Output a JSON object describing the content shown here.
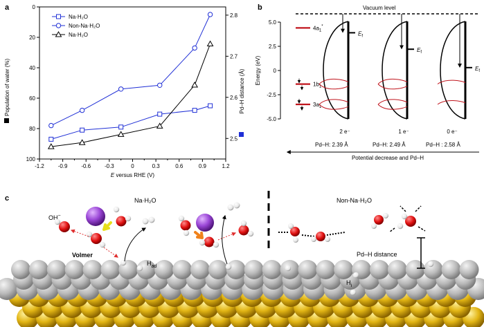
{
  "panel_labels": {
    "a": "a",
    "b": "b",
    "c": "c"
  },
  "colors": {
    "blue": "#1f2fd6",
    "black": "#000000",
    "red": "#c0141c",
    "purple": "#8b3fc0",
    "yellow": "#e4b51b",
    "gray": "#bdbdbd"
  },
  "chart_data": [
    {
      "panel": "a",
      "type": "line",
      "xlabel_italic": "E",
      "xlabel_rest": " versus RHE (V)",
      "ylabel_left": "Population of water (%)",
      "ylabel_right": "Pd–H distance (Å)",
      "xlim": [
        -1.2,
        1.2
      ],
      "ylim_left": [
        100,
        0
      ],
      "ylim_right": [
        2.45,
        2.82
      ],
      "x_ticks": [
        "-1.2",
        "-0.9",
        "-0.6",
        "-0.3",
        "0",
        "0.3",
        "0.6",
        "0.9",
        "1.2"
      ],
      "y_left_ticks": [
        "0",
        "20",
        "40",
        "60",
        "80",
        "100"
      ],
      "y_right_ticks": [
        "2.5",
        "2.6",
        "2.7",
        "2.8"
      ],
      "legend": [
        "Na·H₂O",
        "Non-Na·H₂O",
        "Na·H₂O"
      ],
      "series": [
        {
          "name": "Na·H₂O",
          "axis": "left",
          "marker": "square-open",
          "color": "#1f2fd6",
          "x": [
            -1.05,
            -0.65,
            -0.15,
            0.35,
            0.8,
            1.0
          ],
          "y": [
            87,
            81,
            79,
            70.5,
            68,
            65
          ]
        },
        {
          "name": "Non-Na·H₂O",
          "axis": "left",
          "marker": "circle-open",
          "color": "#1f2fd6",
          "x": [
            -1.05,
            -0.65,
            -0.15,
            0.35,
            0.8,
            1.0
          ],
          "y": [
            78,
            68,
            54,
            51.5,
            27,
            5
          ]
        },
        {
          "name": "Na·H₂O",
          "axis": "right",
          "marker": "triangle-open",
          "color": "#000000",
          "x": [
            -1.05,
            -0.65,
            -0.15,
            0.35,
            0.8,
            1.0
          ],
          "y": [
            2.48,
            2.49,
            2.51,
            2.53,
            2.63,
            2.73
          ]
        }
      ]
    },
    {
      "panel": "b",
      "type": "diagram",
      "ylabel": "Energy (eV)",
      "ylim": [
        -5.0,
        5.0
      ],
      "y_ticks": [
        "5.0",
        "2.5",
        "0",
        "-2.5",
        "-5.0"
      ],
      "vacuum_label": "Vacuum level",
      "fermi_label": "E",
      "fermi_sub": "f",
      "orbitals": [
        {
          "label": "4a",
          "sub": "1",
          "sup": "*",
          "energy": 4.4
        },
        {
          "label": "1b",
          "sub": "1",
          "energy": -1.4
        },
        {
          "label": "3a",
          "sub": "1",
          "energy": -3.5
        }
      ],
      "states": [
        {
          "electrons": "2 e⁻",
          "pd_h": "Pd–H: 2.39 Å",
          "fermi": 3.9
        },
        {
          "electrons": "1 e⁻",
          "pd_h": "Pd–H: 2.49 Å",
          "fermi": 2.2
        },
        {
          "electrons": "0 e⁻",
          "pd_h": "Pd–H : 2.58 Å",
          "fermi": 0.3
        }
      ],
      "bottom_arrow_label": "Potential decrease and Pd–H"
    }
  ],
  "panel_c": {
    "left_title": "Na·H₂O",
    "right_title": "Non-Na·H₂O",
    "oh_label": "OH",
    "oh_sup": "−",
    "volmer_label": "Volmer",
    "had_label": "H",
    "had_sub": "ad",
    "hi_label": "H",
    "hi_sub": "i",
    "pdh_label": "Pd–H distance"
  }
}
